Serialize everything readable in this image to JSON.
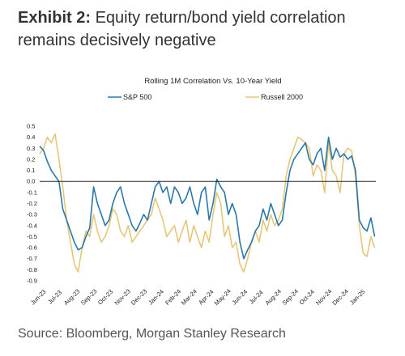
{
  "headline": {
    "label": "Exhibit 2:",
    "text": " Equity return/bond yield correlation remains decisively negative"
  },
  "source": "Source: Bloomberg, Morgan Stanley Research",
  "chart_data": {
    "type": "line",
    "title": "Rolling 1M Correlation Vs. 10-Year Yield",
    "legend_position": "top",
    "grid": false,
    "xlabel": "",
    "ylabel": "",
    "ylim": [
      -0.9,
      0.5
    ],
    "yticks": [
      0.5,
      0.4,
      0.3,
      0.2,
      0.1,
      0.0,
      -0.1,
      -0.2,
      -0.3,
      -0.4,
      -0.5,
      -0.6,
      -0.7,
      -0.8,
      -0.9
    ],
    "ytick_labels": [
      "0.5",
      "0.4",
      "0.3",
      "0.2",
      "0.1",
      "0.0",
      "-0.1",
      "-0.2",
      "-0.3",
      "-0.4",
      "-0.5",
      "-0.6",
      "-0.7",
      "-0.8",
      "-0.9"
    ],
    "x_start": "2023-06-01",
    "x_end": "2025-02-01",
    "xticks": [
      {
        "date": "2023-06-01",
        "label": "Jun-23"
      },
      {
        "date": "2023-07-01",
        "label": "Jul-23"
      },
      {
        "date": "2023-08-01",
        "label": "Aug-23"
      },
      {
        "date": "2023-09-01",
        "label": "Sep-23"
      },
      {
        "date": "2023-10-01",
        "label": "Oct-23"
      },
      {
        "date": "2023-11-01",
        "label": "Nov-23"
      },
      {
        "date": "2023-12-01",
        "label": "Dec-23"
      },
      {
        "date": "2024-01-01",
        "label": "Jan-24"
      },
      {
        "date": "2024-02-01",
        "label": "Feb-24"
      },
      {
        "date": "2024-03-01",
        "label": "Mar-24"
      },
      {
        "date": "2024-04-01",
        "label": "Apr-24"
      },
      {
        "date": "2024-05-01",
        "label": "May-24"
      },
      {
        "date": "2024-06-01",
        "label": "Jun-24"
      },
      {
        "date": "2024-07-01",
        "label": "Jul-24"
      },
      {
        "date": "2024-08-01",
        "label": "Aug-24"
      },
      {
        "date": "2024-09-01",
        "label": "Sep-24"
      },
      {
        "date": "2024-10-01",
        "label": "Oct-24"
      },
      {
        "date": "2024-11-01",
        "label": "Nov-24"
      },
      {
        "date": "2024-12-01",
        "label": "Dec-24"
      },
      {
        "date": "2025-01-01",
        "label": "Jan-25"
      }
    ],
    "series": [
      {
        "name": "S&P 500",
        "color": "#2a77a8",
        "x": [
          "2023-06-01",
          "2023-06-08",
          "2023-06-15",
          "2023-06-22",
          "2023-06-29",
          "2023-07-06",
          "2023-07-13",
          "2023-07-20",
          "2023-07-27",
          "2023-08-03",
          "2023-08-10",
          "2023-08-17",
          "2023-08-24",
          "2023-08-31",
          "2023-09-07",
          "2023-09-14",
          "2023-09-21",
          "2023-09-28",
          "2023-10-05",
          "2023-10-12",
          "2023-10-19",
          "2023-10-26",
          "2023-11-02",
          "2023-11-09",
          "2023-11-16",
          "2023-11-23",
          "2023-11-30",
          "2023-12-07",
          "2023-12-14",
          "2023-12-21",
          "2023-12-28",
          "2024-01-04",
          "2024-01-11",
          "2024-01-18",
          "2024-01-25",
          "2024-02-01",
          "2024-02-08",
          "2024-02-15",
          "2024-02-22",
          "2024-02-29",
          "2024-03-07",
          "2024-03-14",
          "2024-03-21",
          "2024-03-28",
          "2024-04-04",
          "2024-04-11",
          "2024-04-18",
          "2024-04-25",
          "2024-05-02",
          "2024-05-09",
          "2024-05-16",
          "2024-05-23",
          "2024-05-30",
          "2024-06-06",
          "2024-06-13",
          "2024-06-20",
          "2024-06-27",
          "2024-07-04",
          "2024-07-11",
          "2024-07-18",
          "2024-07-25",
          "2024-08-01",
          "2024-08-08",
          "2024-08-15",
          "2024-08-22",
          "2024-08-29",
          "2024-09-05",
          "2024-09-12",
          "2024-09-19",
          "2024-09-26",
          "2024-10-03",
          "2024-10-10",
          "2024-10-17",
          "2024-10-24",
          "2024-10-31",
          "2024-11-07",
          "2024-11-14",
          "2024-11-21",
          "2024-11-28",
          "2024-12-05",
          "2024-12-12",
          "2024-12-19",
          "2024-12-26",
          "2025-01-02",
          "2025-01-09",
          "2025-01-16",
          "2025-01-23",
          "2025-01-30"
        ],
        "y": [
          0.32,
          0.28,
          0.18,
          0.1,
          0.05,
          0.0,
          -0.25,
          -0.35,
          -0.45,
          -0.55,
          -0.62,
          -0.6,
          -0.5,
          -0.42,
          -0.05,
          -0.2,
          -0.3,
          -0.4,
          -0.35,
          -0.2,
          -0.1,
          -0.05,
          -0.2,
          -0.3,
          -0.4,
          -0.45,
          -0.38,
          -0.3,
          -0.35,
          -0.2,
          -0.05,
          0.0,
          -0.1,
          -0.05,
          -0.2,
          -0.05,
          -0.1,
          -0.2,
          -0.15,
          -0.05,
          -0.2,
          -0.3,
          -0.1,
          -0.05,
          -0.35,
          -0.2,
          0.02,
          -0.05,
          -0.1,
          -0.3,
          -0.2,
          -0.3,
          -0.55,
          -0.7,
          -0.62,
          -0.55,
          -0.45,
          -0.4,
          -0.25,
          -0.35,
          -0.2,
          -0.3,
          -0.4,
          -0.35,
          -0.1,
          0.1,
          0.2,
          0.25,
          0.3,
          0.35,
          0.2,
          0.15,
          0.25,
          0.3,
          0.1,
          0.4,
          0.2,
          0.3,
          0.22,
          0.25,
          0.2,
          0.23,
          0.1,
          -0.35,
          -0.42,
          -0.45,
          -0.33,
          -0.5
        ]
      },
      {
        "name": "Russell 2000",
        "color": "#e6c77a",
        "x": [
          "2023-06-01",
          "2023-06-08",
          "2023-06-15",
          "2023-06-22",
          "2023-06-29",
          "2023-07-06",
          "2023-07-13",
          "2023-07-20",
          "2023-07-27",
          "2023-08-03",
          "2023-08-10",
          "2023-08-17",
          "2023-08-24",
          "2023-08-31",
          "2023-09-07",
          "2023-09-14",
          "2023-09-21",
          "2023-09-28",
          "2023-10-05",
          "2023-10-12",
          "2023-10-19",
          "2023-10-26",
          "2023-11-02",
          "2023-11-09",
          "2023-11-16",
          "2023-11-23",
          "2023-11-30",
          "2023-12-07",
          "2023-12-14",
          "2023-12-21",
          "2023-12-28",
          "2024-01-04",
          "2024-01-11",
          "2024-01-18",
          "2024-01-25",
          "2024-02-01",
          "2024-02-08",
          "2024-02-15",
          "2024-02-22",
          "2024-02-29",
          "2024-03-07",
          "2024-03-14",
          "2024-03-21",
          "2024-03-28",
          "2024-04-04",
          "2024-04-11",
          "2024-04-18",
          "2024-04-25",
          "2024-05-02",
          "2024-05-09",
          "2024-05-16",
          "2024-05-23",
          "2024-05-30",
          "2024-06-06",
          "2024-06-13",
          "2024-06-20",
          "2024-06-27",
          "2024-07-04",
          "2024-07-11",
          "2024-07-18",
          "2024-07-25",
          "2024-08-01",
          "2024-08-08",
          "2024-08-15",
          "2024-08-22",
          "2024-08-29",
          "2024-09-05",
          "2024-09-12",
          "2024-09-19",
          "2024-09-26",
          "2024-10-03",
          "2024-10-10",
          "2024-10-17",
          "2024-10-24",
          "2024-10-31",
          "2024-11-07",
          "2024-11-14",
          "2024-11-21",
          "2024-11-28",
          "2024-12-05",
          "2024-12-12",
          "2024-12-19",
          "2024-12-26",
          "2025-01-02",
          "2025-01-09",
          "2025-01-16",
          "2025-01-23",
          "2025-01-30"
        ],
        "y": [
          0.25,
          0.3,
          0.4,
          0.35,
          0.43,
          0.2,
          -0.05,
          -0.35,
          -0.55,
          -0.75,
          -0.82,
          -0.6,
          -0.45,
          -0.5,
          -0.3,
          -0.45,
          -0.55,
          -0.5,
          -0.4,
          -0.25,
          -0.3,
          -0.45,
          -0.5,
          -0.4,
          -0.55,
          -0.5,
          -0.45,
          -0.4,
          -0.35,
          -0.3,
          -0.15,
          -0.25,
          -0.35,
          -0.5,
          -0.45,
          -0.4,
          -0.55,
          -0.45,
          -0.35,
          -0.55,
          -0.4,
          -0.5,
          -0.6,
          -0.45,
          -0.55,
          -0.3,
          -0.1,
          -0.2,
          -0.5,
          -0.4,
          -0.6,
          -0.55,
          -0.75,
          -0.82,
          -0.7,
          -0.55,
          -0.45,
          -0.55,
          -0.35,
          -0.45,
          -0.3,
          -0.4,
          -0.35,
          -0.25,
          0.05,
          0.2,
          0.3,
          0.4,
          0.38,
          0.35,
          0.3,
          0.05,
          0.15,
          0.1,
          -0.1,
          0.35,
          0.1,
          0.05,
          -0.1,
          0.25,
          0.3,
          0.28,
          0.05,
          -0.4,
          -0.65,
          -0.68,
          -0.5,
          -0.6
        ]
      }
    ]
  }
}
